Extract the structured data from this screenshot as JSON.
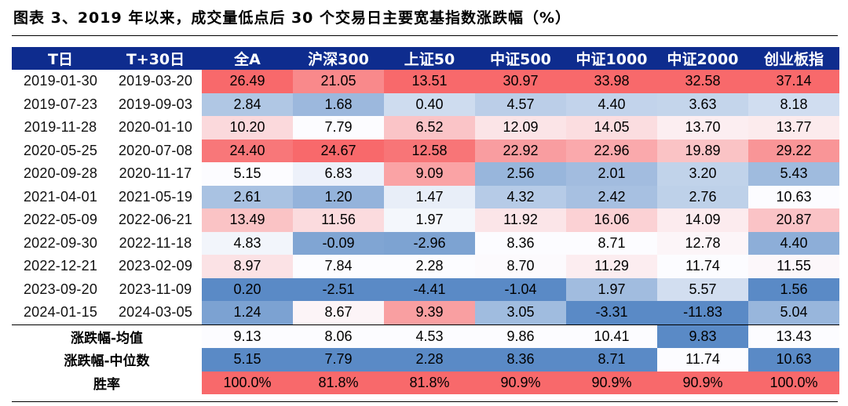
{
  "caption": "图表 3、2019 年以来，成交量低点后 30 个交易日主要宽基指数涨跌幅（%）",
  "table": {
    "headers": [
      "T日",
      "T+30日",
      "全A",
      "沪深300",
      "上证50",
      "中证500",
      "中证1000",
      "中证2000",
      "创业板指"
    ],
    "rows": [
      {
        "t": "2019-01-30",
        "t30": "2019-03-20",
        "values": [
          "26.49",
          "21.05",
          "13.51",
          "30.97",
          "33.98",
          "32.58",
          "37.14"
        ]
      },
      {
        "t": "2019-07-23",
        "t30": "2019-09-03",
        "values": [
          "2.84",
          "1.68",
          "0.40",
          "4.57",
          "4.40",
          "3.63",
          "8.18"
        ]
      },
      {
        "t": "2019-11-28",
        "t30": "2020-01-10",
        "values": [
          "10.20",
          "7.79",
          "6.52",
          "12.09",
          "14.05",
          "13.70",
          "13.77"
        ]
      },
      {
        "t": "2020-05-25",
        "t30": "2020-07-08",
        "values": [
          "24.40",
          "24.67",
          "12.58",
          "22.92",
          "22.96",
          "19.89",
          "29.22"
        ]
      },
      {
        "t": "2020-09-28",
        "t30": "2020-11-17",
        "values": [
          "5.15",
          "6.83",
          "9.09",
          "2.56",
          "2.01",
          "3.20",
          "5.43"
        ]
      },
      {
        "t": "2021-04-01",
        "t30": "2021-05-19",
        "values": [
          "2.61",
          "1.20",
          "1.47",
          "4.32",
          "2.42",
          "2.76",
          "10.63"
        ]
      },
      {
        "t": "2022-05-09",
        "t30": "2022-06-21",
        "values": [
          "13.49",
          "11.56",
          "1.97",
          "11.92",
          "16.06",
          "14.09",
          "20.87"
        ]
      },
      {
        "t": "2022-09-30",
        "t30": "2022-11-18",
        "values": [
          "4.83",
          "-0.09",
          "-2.96",
          "8.36",
          "8.71",
          "12.78",
          "4.40"
        ]
      },
      {
        "t": "2022-12-21",
        "t30": "2023-02-09",
        "values": [
          "8.97",
          "7.84",
          "2.28",
          "8.70",
          "11.29",
          "11.74",
          "11.55"
        ]
      },
      {
        "t": "2023-09-20",
        "t30": "2023-11-09",
        "values": [
          "0.20",
          "-2.51",
          "-4.41",
          "-1.04",
          "1.97",
          "5.57",
          "1.56"
        ]
      },
      {
        "t": "2024-01-15",
        "t30": "2024-03-05",
        "values": [
          "1.24",
          "8.67",
          "9.39",
          "3.05",
          "-3.31",
          "-11.83",
          "5.04"
        ]
      }
    ],
    "summary": [
      {
        "label": "涨跌幅-均值",
        "values": [
          "9.13",
          "8.06",
          "4.53",
          "9.86",
          "10.41",
          "9.83",
          "13.43"
        ]
      },
      {
        "label": "涨跌幅-中位数",
        "values": [
          "5.15",
          "7.79",
          "2.28",
          "8.36",
          "8.71",
          "11.74",
          "10.63"
        ]
      },
      {
        "label": "胜率",
        "values": [
          "100.0%",
          "81.8%",
          "81.8%",
          "90.9%",
          "90.9%",
          "90.9%",
          "100.0%"
        ]
      }
    ],
    "heat_colors": {
      "high": "#f8696b",
      "mid": "#fcfcff",
      "low": "#5a8ac6"
    }
  }
}
